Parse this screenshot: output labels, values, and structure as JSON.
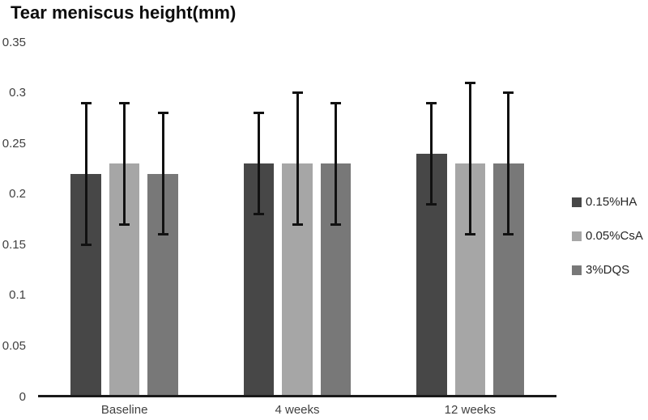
{
  "chart_data": {
    "type": "bar",
    "title": "Tear meniscus height(mm)",
    "categories": [
      "Baseline",
      "4 weeks",
      "12 weeks"
    ],
    "series": [
      {
        "name": "0.15%HA",
        "color": "#474747",
        "values": [
          0.22,
          0.23,
          0.24
        ],
        "error_upper": [
          0.29,
          0.28,
          0.29
        ],
        "error_lower": [
          0.15,
          0.18,
          0.19
        ]
      },
      {
        "name": "0.05%CsA",
        "color": "#a6a6a6",
        "values": [
          0.23,
          0.23,
          0.23
        ],
        "error_upper": [
          0.29,
          0.3,
          0.31
        ],
        "error_lower": [
          0.17,
          0.17,
          0.16
        ]
      },
      {
        "name": "3%DQS",
        "color": "#787878",
        "values": [
          0.22,
          0.23,
          0.23
        ],
        "error_upper": [
          0.28,
          0.29,
          0.3
        ],
        "error_lower": [
          0.16,
          0.17,
          0.16
        ]
      }
    ],
    "ylim": [
      0,
      0.35
    ],
    "ytick_labels": [
      "0",
      "0.05",
      "0.1",
      "0.15",
      "0.2",
      "0.25",
      "0.3",
      "0.35"
    ],
    "grid": false,
    "legend_position": "right",
    "xlabel": "",
    "ylabel": "",
    "error_bar_color": "#111111",
    "axis_color": "#1a1a1a"
  }
}
